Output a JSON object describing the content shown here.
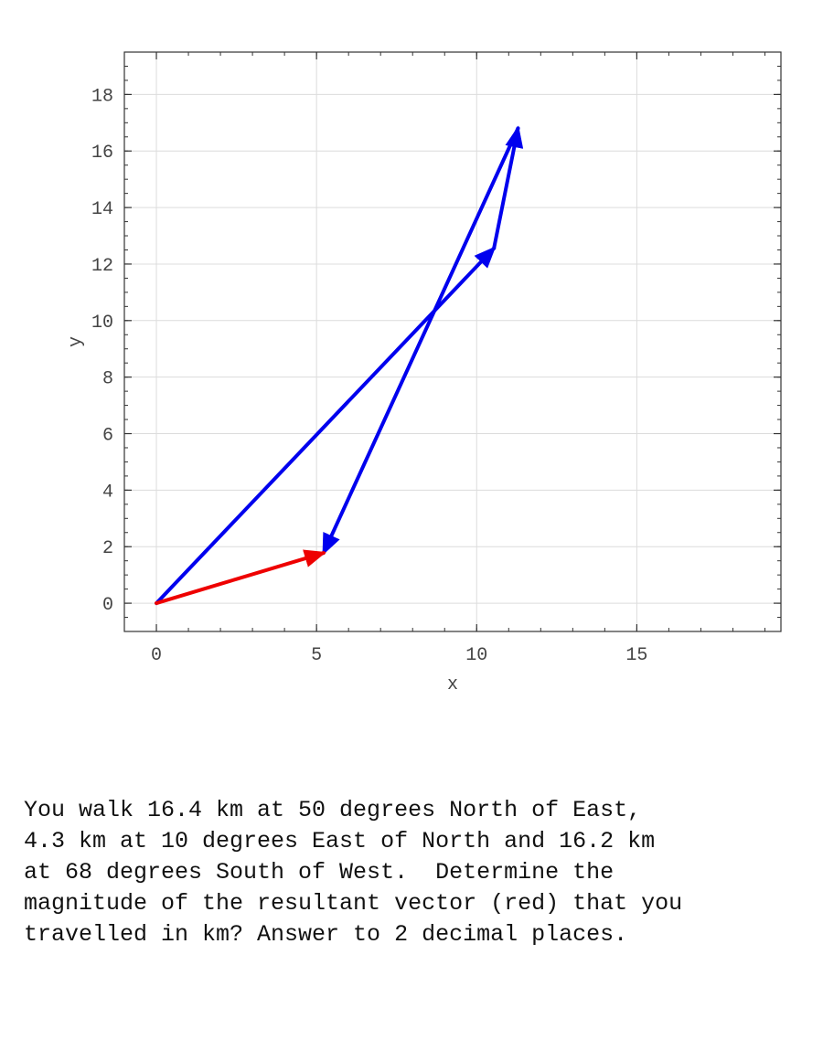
{
  "chart_data": {
    "type": "vector-diagram",
    "xlabel": "x",
    "ylabel": "y",
    "xlim": [
      -1,
      19.5
    ],
    "ylim": [
      -1,
      19.5
    ],
    "xticks": [
      0,
      5,
      10,
      15
    ],
    "yticks": [
      0,
      2,
      4,
      6,
      8,
      10,
      12,
      14,
      16,
      18
    ],
    "grid": true,
    "vectors": [
      {
        "from": [
          0,
          0
        ],
        "to": [
          10.54,
          12.56
        ],
        "color": "#0000ee"
      },
      {
        "from": [
          10.54,
          12.56
        ],
        "to": [
          11.29,
          16.8
        ],
        "color": "#0000ee"
      },
      {
        "from": [
          11.29,
          16.8
        ],
        "to": [
          5.22,
          1.78
        ],
        "color": "#0000ee"
      },
      {
        "from": [
          0,
          0
        ],
        "to": [
          5.22,
          1.78
        ],
        "color": "#ee0000"
      }
    ]
  },
  "question": {
    "lines": [
      "You walk 16.4 km at 50 degrees North of East,",
      "4.3 km at 10 degrees East of North and 16.2 km",
      "at 68 degrees South of West.  Determine the",
      "magnitude of the resultant vector (red) that you",
      "travelled in km? Answer to 2 decimal places."
    ]
  }
}
